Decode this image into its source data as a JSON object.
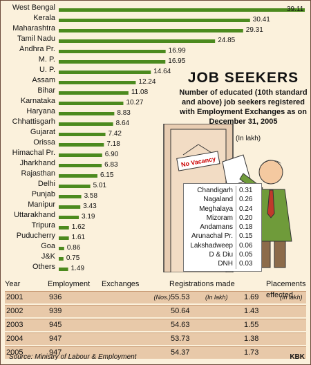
{
  "chart_data": {
    "type": "bar",
    "orientation": "horizontal",
    "title": "JOB SEEKERS",
    "subtitle": "Number of educated (10th standard and above) job seekers registered with Employment Exchanges as on December 31, 2005",
    "unit": "(In lakh)",
    "categories": [
      "West Bengal",
      "Kerala",
      "Maharashtra",
      "Tamil Nadu",
      "Andhra Pr.",
      "M. P.",
      "U. P.",
      "Assam",
      "Bihar",
      "Karnataka",
      "Haryana",
      "Chhattisgarh",
      "Gujarat",
      "Orissa",
      "Himachal Pr.",
      "Jharkhand",
      "Rajasthan",
      "Delhi",
      "Punjab",
      "Manipur",
      "Uttarakhand",
      "Tripura",
      "Puducherry",
      "Goa",
      "J&K",
      "Others"
    ],
    "values": [
      39.11,
      30.41,
      29.31,
      24.85,
      16.99,
      16.95,
      14.64,
      12.24,
      11.08,
      10.27,
      8.83,
      8.64,
      7.42,
      7.18,
      6.9,
      6.83,
      6.15,
      5.01,
      3.58,
      3.43,
      3.19,
      1.62,
      1.61,
      0.86,
      0.75,
      1.49
    ],
    "value_labels": [
      "39.11",
      "30.41",
      "29.31",
      "24.85",
      "16.99",
      "16.95",
      "14.64",
      "12.24",
      "11.08",
      "10.27",
      "8.83",
      "8.64",
      "7.42",
      "7.18",
      "6.90",
      "6.83",
      "6.15",
      "5.01",
      "3.58",
      "3.43",
      "3.19",
      "1.62",
      "1.61",
      "0.86",
      "0.75",
      "1.49"
    ],
    "others_breakdown": [
      {
        "name": "Chandigarh",
        "value": "0.31"
      },
      {
        "name": "Nagaland",
        "value": "0.26"
      },
      {
        "name": "Meghalaya",
        "value": "0.24"
      },
      {
        "name": "Mizoram",
        "value": "0.20"
      },
      {
        "name": "Andamans",
        "value": "0.18"
      },
      {
        "name": "Arunachal Pr.",
        "value": "0.15"
      },
      {
        "name": "Lakshadweep",
        "value": "0.06"
      },
      {
        "name": "D & Diu",
        "value": "0.05"
      },
      {
        "name": "DNH",
        "value": "0.03"
      }
    ],
    "bar_color": "#4c8a1e"
  },
  "illustration": {
    "sign_text": "No Vacancy"
  },
  "table": {
    "headers": {
      "year": "Year",
      "emp": "Employment",
      "exch": "Exchanges",
      "reg": "Registrations made",
      "plc": "Placements effected"
    },
    "units": {
      "nos": "(Nos.)",
      "lakh1": "(In lakh)",
      "lakh2": "(In lakh)"
    },
    "rows": [
      {
        "year": "2001",
        "exch": "936",
        "reg": "55.53",
        "plc": "1.69"
      },
      {
        "year": "2002",
        "exch": "939",
        "reg": "50.64",
        "plc": "1.43"
      },
      {
        "year": "2003",
        "exch": "945",
        "reg": "54.63",
        "plc": "1.55"
      },
      {
        "year": "2004",
        "exch": "947",
        "reg": "53.73",
        "plc": "1.38"
      },
      {
        "year": "2005",
        "exch": "947",
        "reg": "54.37",
        "plc": "1.73"
      }
    ]
  },
  "footer": {
    "source": "Source: Ministry of Labour & Employment",
    "credit": "KBK"
  }
}
